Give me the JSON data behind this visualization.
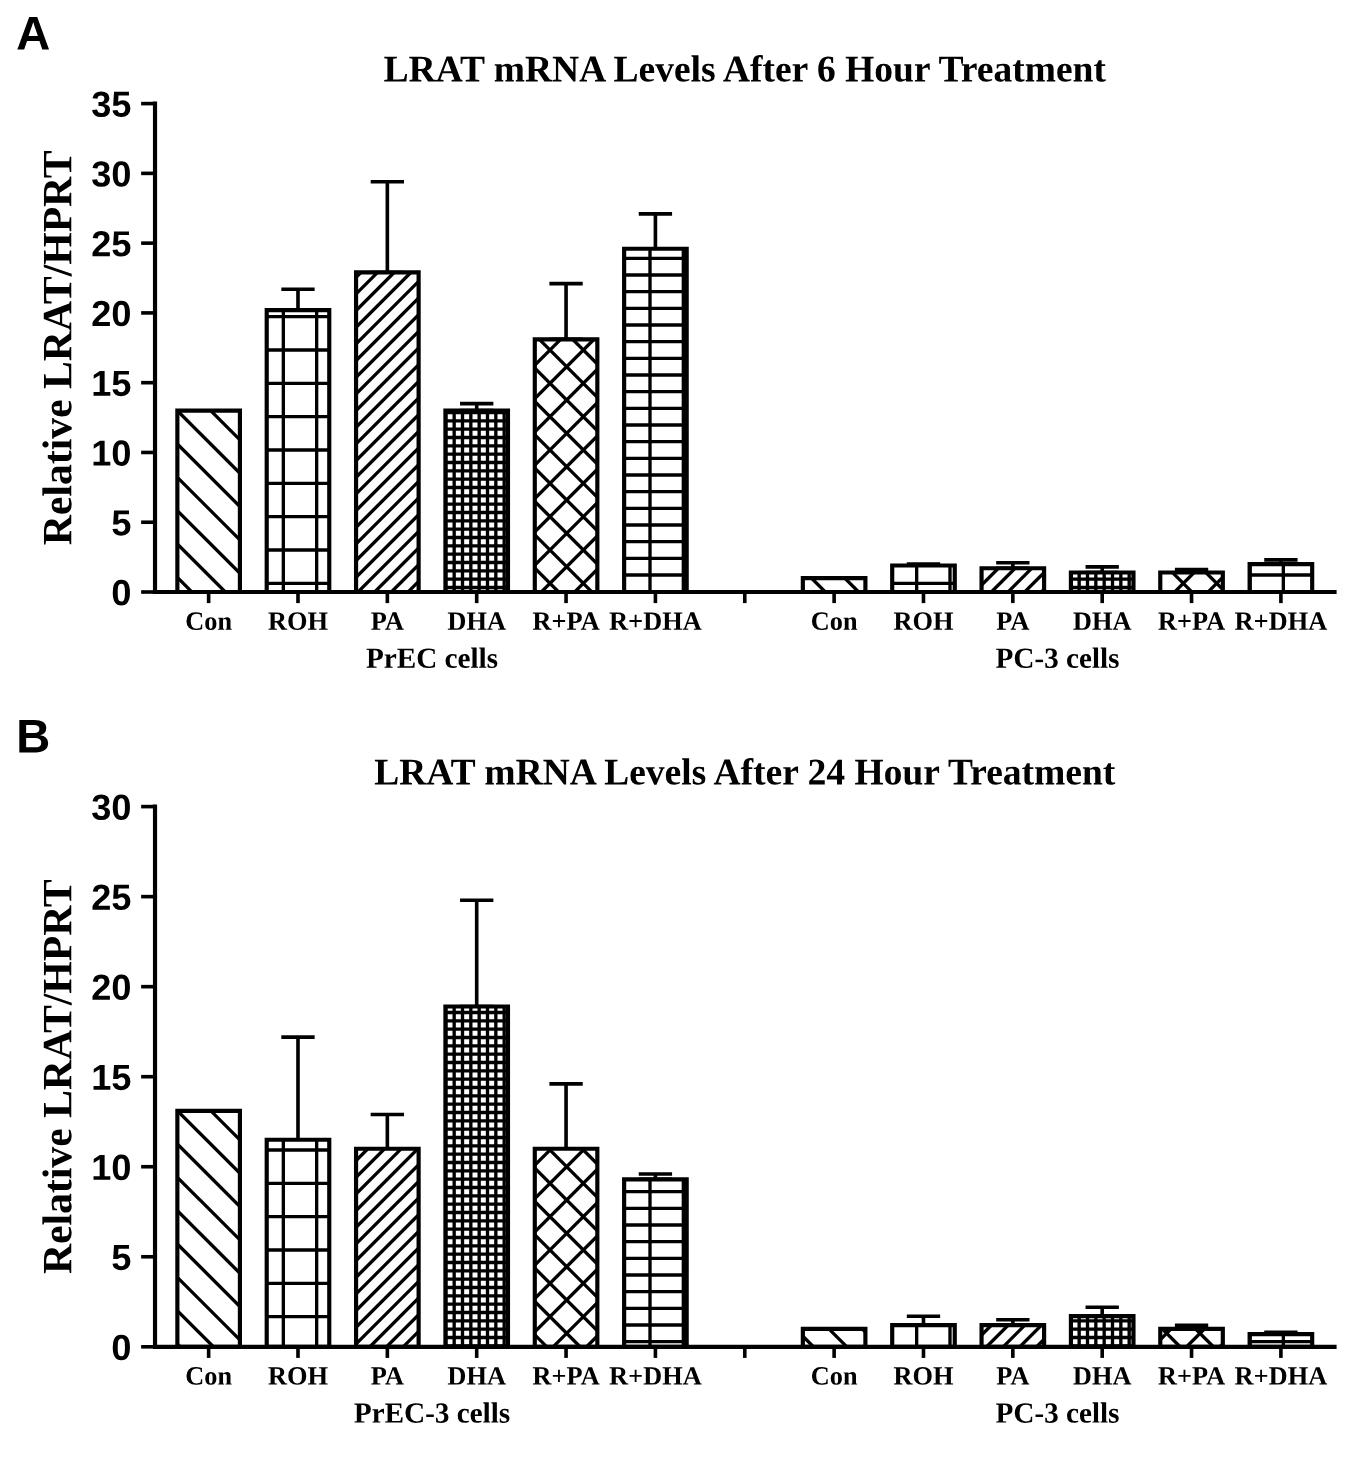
{
  "chart_data": [
    {
      "type": "bar",
      "title": "LRAT mRNA Levels After 6 Hour Treatment",
      "ylabel": "Relative LRAT/HPRT",
      "categories": [
        "Con",
        "ROH",
        "PA",
        "DHA",
        "R+PA",
        "R+DHA",
        null,
        "Con",
        "ROH",
        "PA",
        "DHA",
        "R+PA",
        "R+DHA"
      ],
      "values": [
        13,
        20.2,
        22.9,
        13,
        18.1,
        24.6,
        null,
        1.0,
        1.9,
        1.7,
        1.4,
        1.4,
        2.0
      ],
      "errors": [
        null,
        1.5,
        6.5,
        0.5,
        4.0,
        2.5,
        null,
        null,
        0.1,
        0.4,
        0.4,
        0.2,
        0.3
      ],
      "colors": [
        "#000000",
        "#000000",
        "#000000",
        "#000000",
        "#000000",
        "#000000",
        "#000000",
        "#000000",
        "#000000",
        "#000000",
        "#000000",
        "#000000",
        "#000000"
      ],
      "ylim": [
        0,
        35
      ],
      "yticks": [
        0,
        5,
        10,
        15,
        20,
        25,
        30,
        35
      ],
      "grid": false,
      "legend": false,
      "annotations": [
        "A",
        "PrEC cells",
        "PC-3 cells"
      ]
    },
    {
      "type": "bar",
      "title": "LRAT mRNA Levels After 24 Hour Treatment",
      "ylabel": "Relative LRAT/HPRT",
      "categories": [
        "Con",
        "ROH",
        "PA",
        "DHA",
        "R+PA",
        "R+DHA",
        null,
        "Con",
        "ROH",
        "PA",
        "DHA",
        "R+PA",
        "R+DHA"
      ],
      "values": [
        13.1,
        11.5,
        11.0,
        18.9,
        11.0,
        9.3,
        null,
        1.0,
        1.2,
        1.2,
        1.7,
        1.0,
        0.7
      ],
      "errors": [
        null,
        5.7,
        1.9,
        5.9,
        3.6,
        0.3,
        null,
        null,
        0.5,
        0.3,
        0.5,
        0.2,
        0.1
      ],
      "colors": [
        "#000000",
        "#000000",
        "#000000",
        "#000000",
        "#000000",
        "#000000",
        "#000000",
        "#000000",
        "#000000",
        "#000000",
        "#000000",
        "#000000",
        "#000000"
      ],
      "ylim": [
        0,
        30
      ],
      "yticks": [
        0,
        5,
        10,
        15,
        20,
        25,
        30
      ],
      "grid": false,
      "legend": false,
      "annotations": [
        "B",
        "PrEC-3 cells",
        "PC-3 cells"
      ]
    }
  ]
}
